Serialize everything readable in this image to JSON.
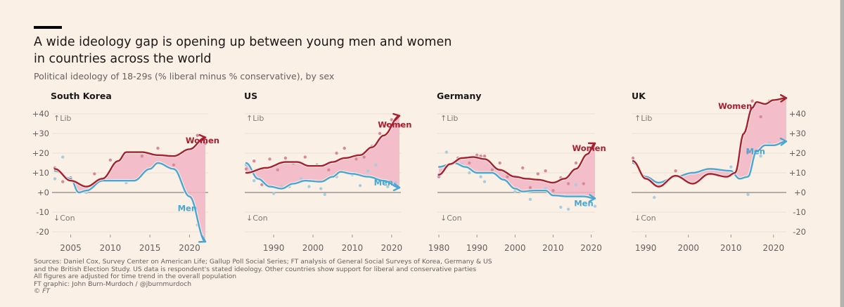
{
  "header": {
    "title_line1": "A wide ideology gap is opening up between young men and women",
    "title_line2": "in countries across the world",
    "subtitle": "Political ideology of 18-29s (% liberal minus % conservative), by sex"
  },
  "footer": {
    "lines": [
      "Sources: Daniel Cox, Survey Center on American Life; Gallup Poll Social Series; FT analysis of General Social Surveys of Korea, Germany & US",
      "and the British Election Study. US data is respondent's stated ideology. Other countries show support for liberal and conservative parties",
      "All figures are adjusted for time trend in the overall population",
      "FT graphic: John Burn-Murdoch / @jburnmurdoch",
      "© FT"
    ]
  },
  "colors": {
    "background": "#fbf0e6",
    "women": "#a8202f",
    "men": "#4ba6d4",
    "gap_fill": "#f1b4c3",
    "women_dots": "#d98a98",
    "men_dots": "#a9cde0",
    "zero_line": "#8a8480",
    "grid": "#e8dfd6"
  },
  "chart_data": [
    {
      "type": "line",
      "title": "South Korea",
      "ylim": [
        -20,
        40
      ],
      "yticks": [
        "+40",
        "+30",
        "+20",
        "+10",
        "+0",
        "-10",
        "-20"
      ],
      "ytick_values": [
        40,
        30,
        20,
        10,
        0,
        -10,
        -20
      ],
      "ytick_side": "left",
      "xlim": [
        2003,
        2022
      ],
      "xticks": [
        2005,
        2010,
        2015,
        2020
      ],
      "direction_labels": {
        "up": "↑Lib",
        "down": "↓Con"
      },
      "series": [
        {
          "name": "Women",
          "x": [
            2003,
            2005,
            2007,
            2009,
            2011,
            2012,
            2014,
            2016,
            2018,
            2020,
            2022
          ],
          "values": [
            12,
            6,
            3,
            7,
            16,
            20.5,
            20.5,
            19,
            18.5,
            22,
            28
          ]
        },
        {
          "name": "Men",
          "x": [
            2003,
            2005,
            2006,
            2007,
            2009,
            2011,
            2013,
            2015,
            2016,
            2018,
            2020,
            2022
          ],
          "values": [
            11,
            7,
            0,
            1,
            6,
            6,
            6,
            12,
            15,
            12,
            -2,
            -25
          ]
        }
      ],
      "dots_women": [
        [
          2003,
          12.5
        ],
        [
          2004,
          5.5
        ],
        [
          2005,
          7.5
        ],
        [
          2008,
          9.5
        ],
        [
          2010,
          16.5
        ],
        [
          2014,
          18.5
        ],
        [
          2016,
          22.5
        ],
        [
          2018,
          14
        ],
        [
          2021,
          29
        ],
        [
          2022,
          25
        ]
      ],
      "dots_men": [
        [
          2003,
          7
        ],
        [
          2004,
          18
        ],
        [
          2007,
          0
        ],
        [
          2012,
          5
        ],
        [
          2014,
          9
        ],
        [
          2021,
          -16.5
        ]
      ],
      "label_positions": {
        "Women": [
          2019.5,
          25
        ],
        "Men": [
          2018.5,
          -9.5
        ]
      }
    },
    {
      "type": "line",
      "title": "US",
      "ylim": [
        -20,
        40
      ],
      "yticks": [],
      "ytick_values": [
        40,
        30,
        20,
        10,
        0,
        -10,
        -20
      ],
      "ytick_side": "none",
      "xlim": [
        1983,
        2022
      ],
      "xticks": [
        1990,
        2000,
        2010,
        2020
      ],
      "direction_labels": {
        "up": "↑Lib",
        "down": "↓Con"
      },
      "series": [
        {
          "name": "Women",
          "x": [
            1983,
            1988,
            1993,
            1996,
            1999,
            2002,
            2005,
            2008,
            2012,
            2015,
            2018,
            2022
          ],
          "values": [
            10,
            12.5,
            15.5,
            15.5,
            13.5,
            13.5,
            15.5,
            17.5,
            19,
            23,
            29,
            39
          ]
        },
        {
          "name": "Men",
          "x": [
            1983,
            1986,
            1989,
            1992,
            1995,
            1998,
            2002,
            2005,
            2007,
            2010,
            2014,
            2018,
            2022
          ],
          "values": [
            15,
            7,
            3,
            2,
            4.5,
            6,
            5.5,
            8,
            10.5,
            9.5,
            8,
            6,
            2.5
          ]
        }
      ],
      "dots_women": [
        [
          1983,
          12
        ],
        [
          1985,
          16
        ],
        [
          1987,
          4
        ],
        [
          1989,
          17
        ],
        [
          1991,
          11.5
        ],
        [
          1993,
          17.5
        ],
        [
          1995,
          15
        ],
        [
          1998,
          18
        ],
        [
          2001,
          14
        ],
        [
          2004,
          11.5
        ],
        [
          2006,
          20
        ],
        [
          2008,
          22.5
        ],
        [
          2011,
          17
        ],
        [
          2013,
          18
        ],
        [
          2015,
          23.5
        ],
        [
          2017,
          30
        ],
        [
          2019,
          34.5
        ],
        [
          2020,
          37
        ],
        [
          2022,
          34
        ]
      ],
      "dots_men": [
        [
          1983,
          14
        ],
        [
          1985,
          6
        ],
        [
          1988,
          4
        ],
        [
          1990,
          -0.5
        ],
        [
          1992,
          3
        ],
        [
          1994,
          3
        ],
        [
          1997,
          7
        ],
        [
          1999,
          3
        ],
        [
          2002,
          2
        ],
        [
          2003,
          -1
        ],
        [
          2006,
          8
        ],
        [
          2010,
          9
        ],
        [
          2012,
          3.5
        ],
        [
          2014,
          11
        ],
        [
          2016,
          14
        ],
        [
          2019,
          3
        ],
        [
          2021,
          5
        ]
      ],
      "label_positions": {
        "Women": [
          2016.5,
          33
        ],
        "Men": [
          2015.5,
          3.5
        ]
      }
    },
    {
      "type": "line",
      "title": "Germany",
      "ylim": [
        -20,
        40
      ],
      "yticks": [],
      "ytick_values": [
        40,
        30,
        20,
        10,
        0,
        -10,
        -20
      ],
      "ytick_side": "none",
      "xlim": [
        1980,
        2021
      ],
      "xticks": [
        1980,
        1990,
        2000,
        2010,
        2020
      ],
      "direction_labels": {
        "up": "↑Lib",
        "down": "↓Con"
      },
      "series": [
        {
          "name": "Women",
          "x": [
            1980,
            1983,
            1986,
            1989,
            1992,
            1996,
            2000,
            2003,
            2006,
            2010,
            2013,
            2016,
            2019,
            2021
          ],
          "values": [
            9,
            14.5,
            17.5,
            18,
            17,
            11.5,
            8,
            7,
            6.5,
            5,
            7,
            12,
            19.5,
            25
          ]
        },
        {
          "name": "Men",
          "x": [
            1980,
            1984,
            1987,
            1990,
            1994,
            1997,
            2000,
            2002,
            2005,
            2008,
            2010,
            2014,
            2018,
            2021
          ],
          "values": [
            13,
            15,
            13,
            10,
            10,
            6.5,
            2,
            0.5,
            1,
            1,
            -1.5,
            -2,
            -2,
            -3
          ]
        }
      ],
      "dots_women": [
        [
          1980,
          8
        ],
        [
          1982,
          14
        ],
        [
          1985,
          17.5
        ],
        [
          1988,
          15
        ],
        [
          1990,
          19
        ],
        [
          1991,
          18.5
        ],
        [
          1992,
          18.5
        ],
        [
          1994,
          11.5
        ],
        [
          1996,
          15
        ],
        [
          1998,
          8
        ],
        [
          2002,
          12.5
        ],
        [
          2004,
          2.5
        ],
        [
          2006,
          9.5
        ],
        [
          2008,
          11
        ],
        [
          2010,
          1
        ],
        [
          2012,
          7.5
        ],
        [
          2014,
          4.5
        ],
        [
          2016,
          15
        ],
        [
          2018,
          4.5
        ]
      ],
      "dots_men": [
        [
          1980,
          9
        ],
        [
          1982,
          20.5
        ],
        [
          1986,
          14.5
        ],
        [
          1988,
          10
        ],
        [
          1991,
          8
        ],
        [
          1992,
          5.5
        ],
        [
          2000,
          0.5
        ],
        [
          2004,
          -3.5
        ],
        [
          2008,
          2
        ],
        [
          2012,
          -7.5
        ],
        [
          2014,
          -8.5
        ],
        [
          2016,
          4
        ],
        [
          2021,
          -7
        ]
      ],
      "label_positions": {
        "Women": [
          2015,
          21
        ],
        "Men": [
          2015.5,
          -7
        ]
      }
    },
    {
      "type": "line",
      "title": "UK",
      "ylim": [
        -20,
        40
      ],
      "yticks": [
        "+40",
        "+30",
        "+20",
        "+10",
        "+0",
        "-10",
        "-20"
      ],
      "ytick_values": [
        40,
        30,
        20,
        10,
        0,
        -10,
        -20
      ],
      "ytick_side": "right",
      "xlim": [
        1987,
        2023
      ],
      "xticks": [
        1990,
        2000,
        2010,
        2020
      ],
      "direction_labels": {
        "up": "↑Lib",
        "down": "↓Con"
      },
      "series": [
        {
          "name": "Women",
          "x": [
            1987,
            1990,
            1993,
            1997,
            2001,
            2005,
            2009,
            2011,
            2013,
            2015,
            2016,
            2018,
            2020,
            2023
          ],
          "values": [
            16,
            7,
            3,
            8.5,
            4.5,
            9.5,
            8,
            10,
            30,
            43,
            46,
            45,
            47,
            48
          ]
        },
        {
          "name": "Men",
          "x": [
            1987,
            1990,
            1993,
            1997,
            2001,
            2005,
            2010,
            2012,
            2014,
            2016,
            2018,
            2020,
            2023
          ],
          "values": [
            15,
            8,
            5,
            8,
            10,
            12,
            11,
            7,
            8,
            21,
            24,
            24,
            26
          ]
        }
      ],
      "dots_women": [
        [
          1987,
          17.5
        ],
        [
          1997,
          11
        ],
        [
          2014,
          20.5
        ],
        [
          2015,
          46.5
        ],
        [
          2017,
          38.5
        ],
        [
          2019,
          46.5
        ]
      ],
      "dots_men": [
        [
          1992,
          -2.5
        ],
        [
          2010,
          13
        ],
        [
          2014,
          -1
        ],
        [
          2015,
          22
        ],
        [
          2017,
          18.5
        ],
        [
          2019,
          25
        ]
      ],
      "label_positions": {
        "Women": [
          2007,
          42.5
        ],
        "Men": [
          2013.5,
          19.5
        ]
      }
    }
  ]
}
